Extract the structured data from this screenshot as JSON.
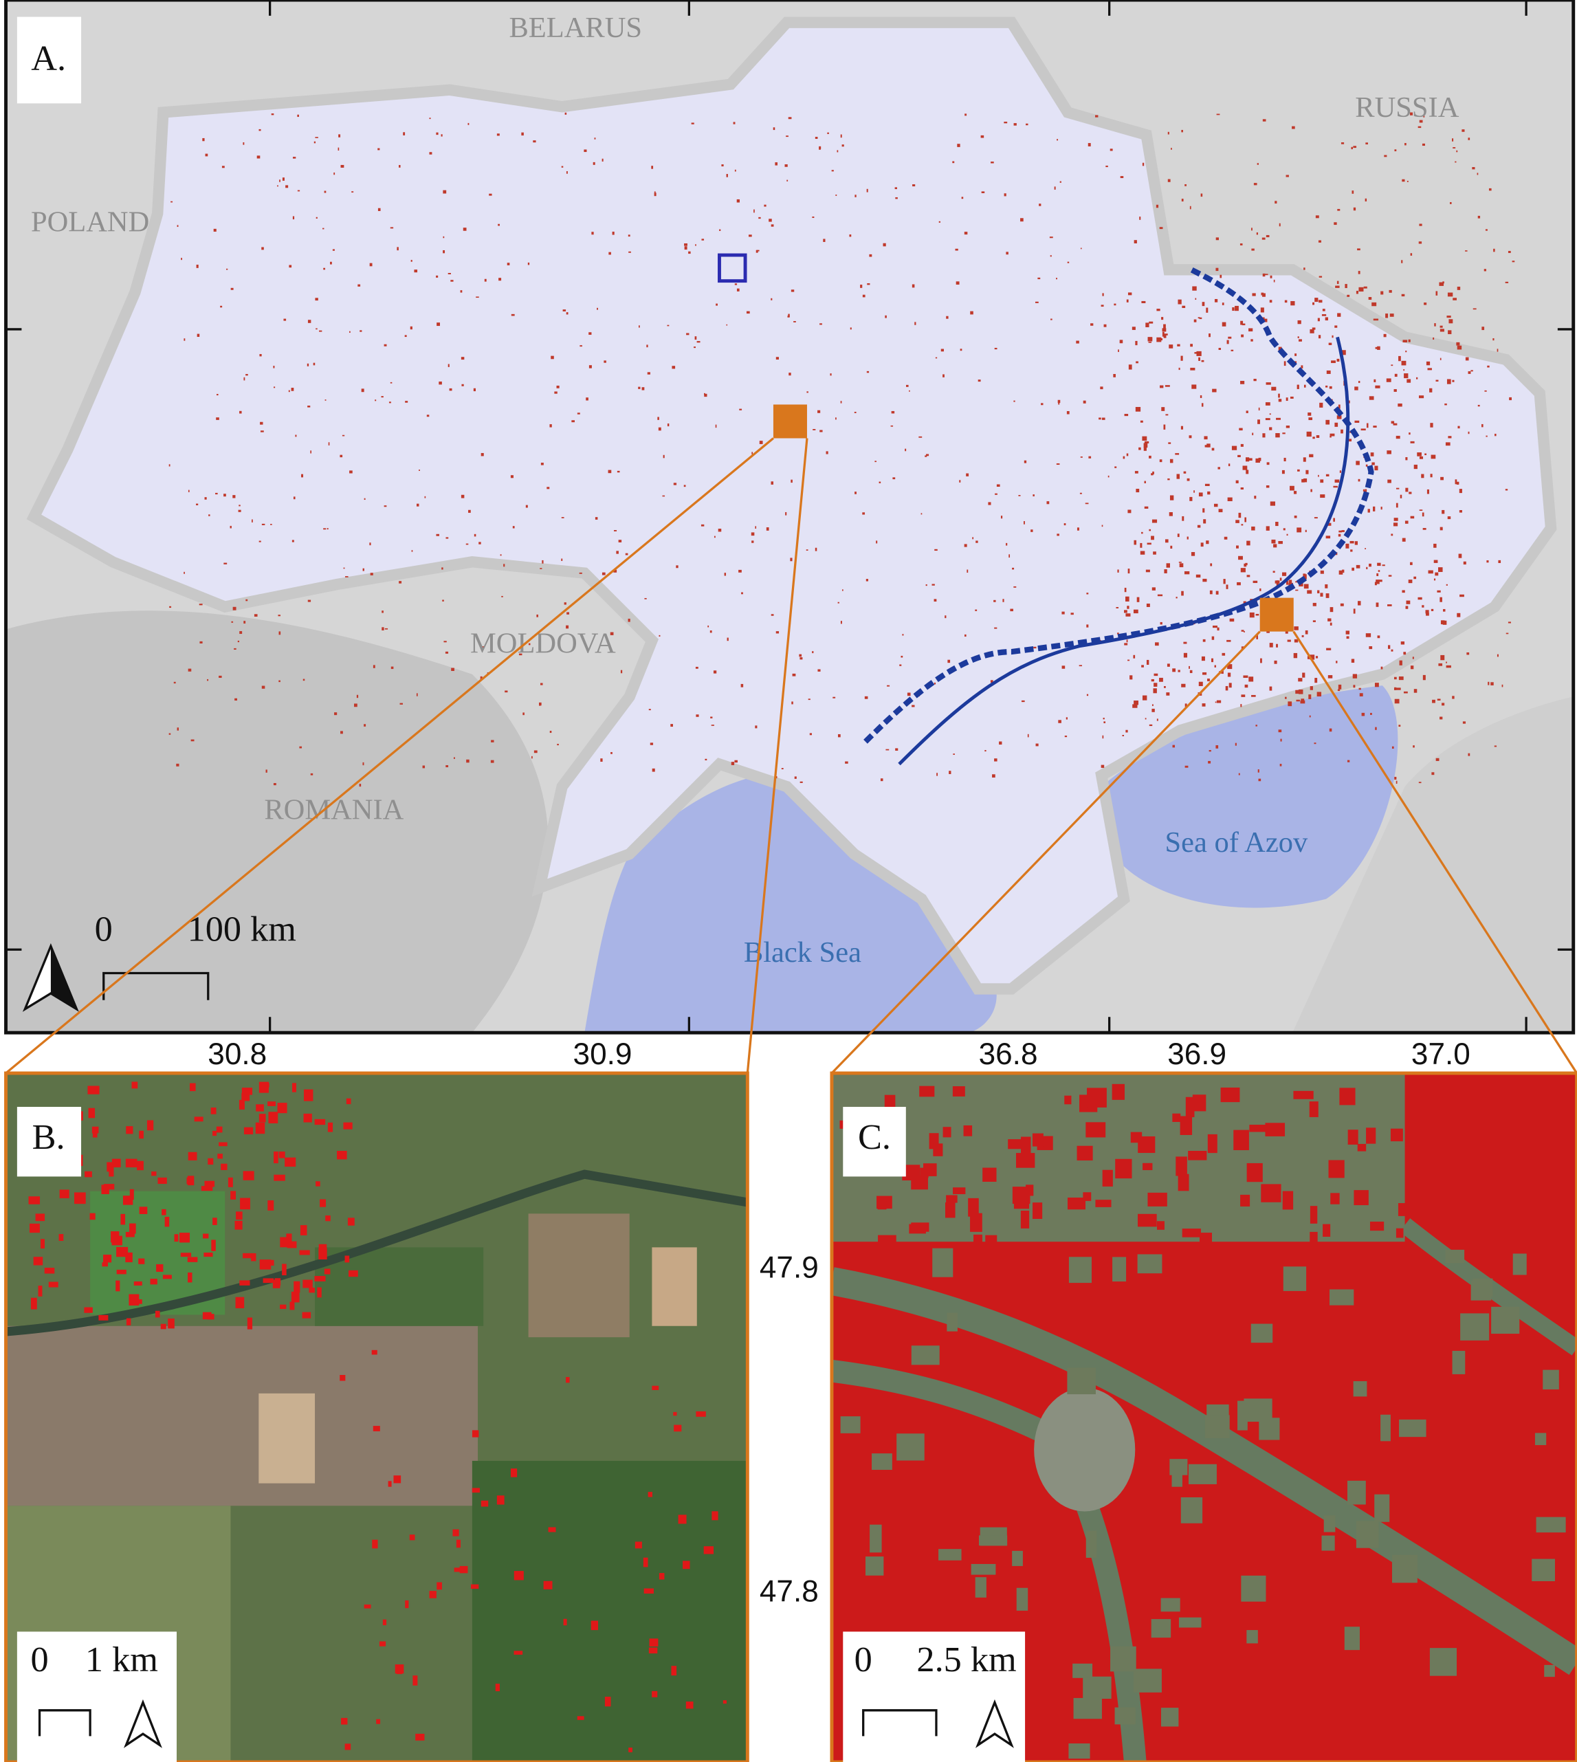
{
  "panels": [
    {
      "label": "A.",
      "countries": [
        "BELARUS",
        "RUSSIA",
        "POLAND",
        "MOLDOVA",
        "ROMANIA"
      ],
      "seas": [
        "Sea of Azov",
        "Black Sea"
      ],
      "scale": {
        "start": "0",
        "end": "100 km"
      }
    },
    {
      "label": "B.",
      "scale": {
        "start": "0",
        "end": "1 km"
      },
      "x_labels": [
        "30.8",
        "30.9"
      ]
    },
    {
      "label": "C.",
      "scale": {
        "start": "0",
        "end": "2.5 km"
      },
      "x_labels": [
        "36.8",
        "36.9",
        "37.0"
      ]
    }
  ],
  "lat_labels": [
    "47.9",
    "47.8"
  ]
}
